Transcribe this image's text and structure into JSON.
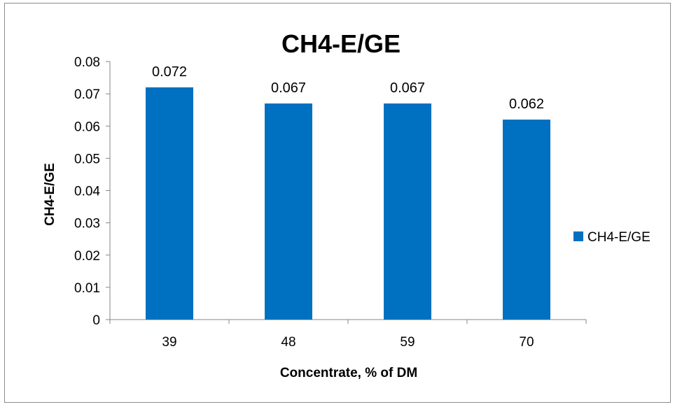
{
  "chart_data": {
    "type": "bar",
    "title": "CH4-E/GE",
    "xlabel": "Concentrate, % of DM",
    "ylabel": "CH4-E/GE",
    "categories": [
      "39",
      "48",
      "59",
      "70"
    ],
    "series": [
      {
        "name": "CH4-E/GE",
        "values": [
          0.072,
          0.067,
          0.067,
          0.062
        ],
        "color": "#0070C0"
      }
    ],
    "data_labels": [
      "0.072",
      "0.067",
      "0.067",
      "0.062"
    ],
    "ylim": [
      0,
      0.08
    ],
    "yticks": [
      "0",
      "0.01",
      "0.02",
      "0.03",
      "0.04",
      "0.05",
      "0.06",
      "0.07",
      "0.08"
    ],
    "grid": false,
    "legend_position": "right"
  }
}
